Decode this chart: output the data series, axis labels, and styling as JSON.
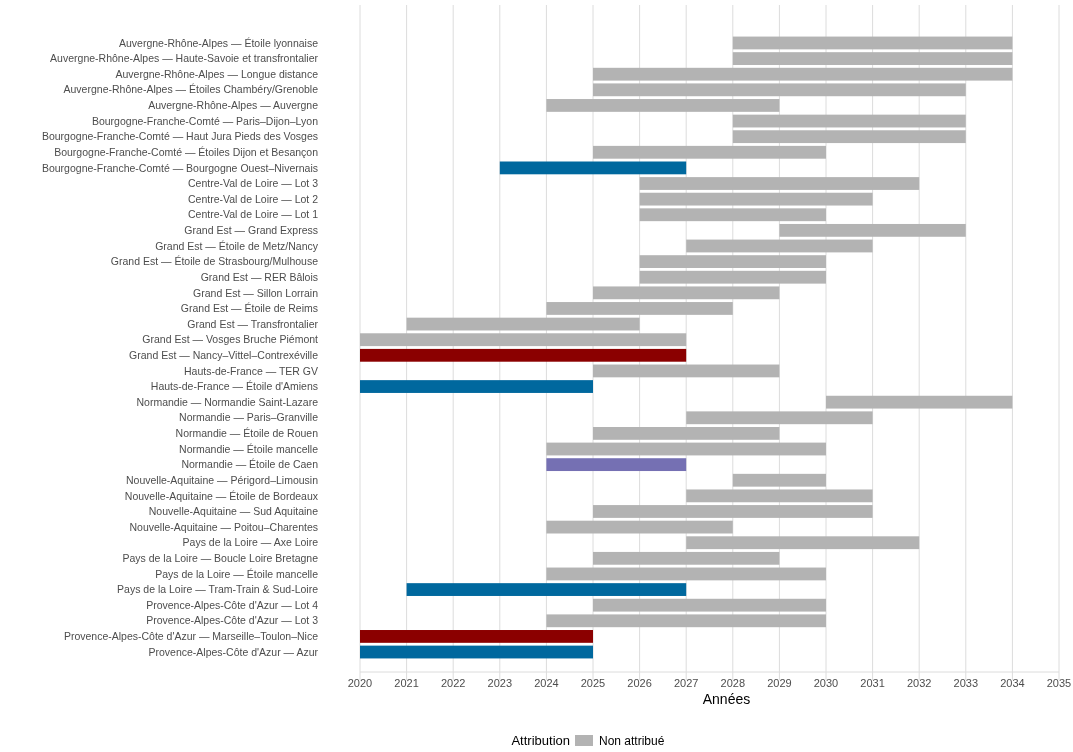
{
  "chart_data": {
    "type": "bar",
    "orientation": "horizontal",
    "xlabel": "Années",
    "legend_title": "Attribution",
    "legend": "bottom",
    "grid": "x",
    "categories": [
      "Auvergne-Rhône-Alpes — Étoile lyonnaise",
      "Auvergne-Rhône-Alpes — Haute-Savoie et transfrontalier",
      "Auvergne-Rhône-Alpes — Longue distance",
      "Auvergne-Rhône-Alpes — Étoiles Chambéry/Grenoble",
      "Auvergne-Rhône-Alpes — Auvergne",
      "Bourgogne-Franche-Comté — Paris–Dijon–Lyon",
      "Bourgogne-Franche-Comté — Haut Jura Pieds des Vosges",
      "Bourgogne-Franche-Comté — Étoiles Dijon et Besançon",
      "Bourgogne-Franche-Comté — Bourgogne Ouest–Nivernais",
      "Centre-Val de Loire — Lot 3",
      "Centre-Val de Loire — Lot 2",
      "Centre-Val de Loire — Lot 1",
      "Grand Est — Grand Express",
      "Grand Est — Étoile de Metz/Nancy",
      "Grand Est — Étoile de Strasbourg/Mulhouse",
      "Grand Est — RER Bâlois",
      "Grand Est — Sillon Lorrain",
      "Grand Est — Étoile de Reims",
      "Grand Est — Transfrontalier",
      "Grand Est — Vosges Bruche Piémont",
      "Grand Est — Nancy–Vittel–Contrexéville",
      "Hauts-de-France — TER GV",
      "Hauts-de-France — Étoile d'Amiens",
      "Normandie — Normandie Saint-Lazare",
      "Normandie — Paris–Granville",
      "Normandie — Étoile de Rouen",
      "Normandie — Étoile mancelle",
      "Normandie — Étoile de Caen",
      "Nouvelle-Aquitaine — Périgord–Limousin",
      "Nouvelle-Aquitaine — Étoile de Bordeaux",
      "Nouvelle-Aquitaine — Sud Aquitaine",
      "Nouvelle-Aquitaine — Poitou–Charentes",
      "Pays de la Loire — Axe Loire",
      "Pays de la Loire — Boucle Loire Bretagne",
      "Pays de la Loire — Étoile mancelle",
      "Pays de la Loire — Tram-Train & Sud-Loire",
      "Provence-Alpes-Côte d'Azur — Lot 4",
      "Provence-Alpes-Côte d'Azur — Lot 3",
      "Provence-Alpes-Côte d'Azur — Marseille–Toulon–Nice",
      "Provence-Alpes-Côte d'Azur — Azur"
    ],
    "series": [
      {
        "name": "Non attribué",
        "color": "#b3b3b3",
        "base": [
          2028,
          2028,
          2025,
          2025,
          2024,
          2028,
          2028,
          2025,
          null,
          2026,
          2026,
          2026,
          2029,
          2027,
          2026,
          2026,
          2025,
          2024,
          2021,
          2020,
          null,
          2025,
          null,
          2030,
          2027,
          2025,
          2024,
          null,
          2028,
          2027,
          2025,
          2024,
          2027,
          2025,
          2024,
          null,
          2025,
          2024,
          null,
          null
        ],
        "values": [
          6,
          6,
          9,
          8,
          5,
          5,
          5,
          5,
          null,
          6,
          5,
          4,
          4,
          4,
          4,
          4,
          4,
          4,
          5,
          7,
          null,
          4,
          null,
          4,
          4,
          4,
          6,
          null,
          2,
          4,
          6,
          4,
          5,
          4,
          6,
          null,
          5,
          6,
          null,
          null
        ]
      },
      {
        "color": "#7570b3",
        "base": [
          null,
          null,
          null,
          null,
          null,
          null,
          null,
          null,
          null,
          null,
          null,
          null,
          null,
          null,
          null,
          null,
          null,
          null,
          null,
          null,
          null,
          null,
          null,
          null,
          null,
          null,
          null,
          2024,
          null,
          null,
          null,
          null,
          null,
          null,
          null,
          null,
          null,
          null,
          null,
          null
        ],
        "values": [
          null,
          null,
          null,
          null,
          null,
          null,
          null,
          null,
          null,
          null,
          null,
          null,
          null,
          null,
          null,
          null,
          null,
          null,
          null,
          null,
          null,
          null,
          null,
          null,
          null,
          null,
          null,
          3,
          null,
          null,
          null,
          null,
          null,
          null,
          null,
          null,
          null,
          null,
          null,
          null
        ]
      },
      {
        "color": "#00689e",
        "base": [
          null,
          null,
          null,
          null,
          null,
          null,
          null,
          null,
          2023,
          null,
          null,
          null,
          null,
          null,
          null,
          null,
          null,
          null,
          null,
          null,
          null,
          null,
          2020,
          null,
          null,
          null,
          null,
          null,
          null,
          null,
          null,
          null,
          null,
          null,
          null,
          2021,
          null,
          null,
          null,
          2020
        ],
        "values": [
          null,
          null,
          null,
          null,
          null,
          null,
          null,
          null,
          4,
          null,
          null,
          null,
          null,
          null,
          null,
          null,
          null,
          null,
          null,
          null,
          null,
          null,
          5,
          null,
          null,
          null,
          null,
          null,
          null,
          null,
          null,
          null,
          null,
          null,
          null,
          6,
          null,
          null,
          null,
          5
        ]
      },
      {
        "color": "#8b0000",
        "base": [
          null,
          null,
          null,
          null,
          null,
          null,
          null,
          null,
          null,
          null,
          null,
          null,
          null,
          null,
          null,
          null,
          null,
          null,
          null,
          null,
          2020,
          null,
          null,
          null,
          null,
          null,
          null,
          null,
          null,
          null,
          null,
          null,
          null,
          null,
          null,
          null,
          null,
          null,
          2020,
          null
        ],
        "values": [
          null,
          null,
          null,
          null,
          null,
          null,
          null,
          null,
          null,
          null,
          null,
          null,
          null,
          null,
          null,
          null,
          null,
          null,
          null,
          null,
          7,
          null,
          null,
          null,
          null,
          null,
          null,
          null,
          null,
          null,
          null,
          null,
          null,
          null,
          null,
          null,
          null,
          null,
          5,
          null
        ]
      }
    ],
    "xlim": [
      2020,
      2035
    ],
    "xticks": [
      2020,
      2021,
      2022,
      2023,
      2024,
      2025,
      2026,
      2027,
      2028,
      2029,
      2030,
      2031,
      2032,
      2033,
      2034,
      2035
    ]
  }
}
